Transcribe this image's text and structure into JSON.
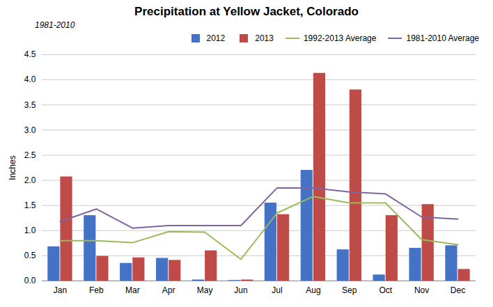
{
  "chart_data": {
    "type": "bar",
    "title": "Precipitation at Yellow Jacket, Colorado",
    "subtitle": "1981-2010",
    "ylabel": "Inches",
    "categories": [
      "Jan",
      "Feb",
      "Mar",
      "Apr",
      "May",
      "Jun",
      "Jul",
      "Aug",
      "Sep",
      "Oct",
      "Nov",
      "Dec"
    ],
    "series": [
      {
        "name": "2012",
        "type": "bar",
        "color": "#4472C4",
        "values": [
          0.68,
          1.3,
          0.35,
          0.45,
          0.02,
          0.01,
          1.55,
          2.2,
          0.62,
          0.12,
          0.65,
          0.7
        ]
      },
      {
        "name": "2013",
        "type": "bar",
        "color": "#BE4B48",
        "values": [
          2.07,
          0.49,
          0.46,
          0.41,
          0.6,
          0.02,
          1.32,
          4.13,
          3.8,
          1.3,
          1.52,
          0.23
        ]
      },
      {
        "name": "1992-2013 Average",
        "type": "line",
        "color": "#9BBB59",
        "values": [
          0.8,
          0.8,
          0.76,
          0.98,
          0.97,
          0.43,
          1.35,
          1.68,
          1.55,
          1.55,
          0.82,
          0.72
        ]
      },
      {
        "name": "1981-2010 Average",
        "type": "line",
        "color": "#8064A2",
        "values": [
          1.18,
          1.43,
          1.05,
          1.1,
          1.1,
          1.1,
          1.85,
          1.85,
          1.77,
          1.73,
          1.27,
          1.23
        ]
      }
    ],
    "ylim": [
      0,
      4.5
    ],
    "yticks": [
      {
        "value": 0,
        "label": "0.0"
      },
      0.5,
      {
        "value": 1,
        "label": "1.0"
      },
      1.5,
      {
        "value": 2,
        "label": "2.0"
      },
      2.5,
      {
        "value": 3,
        "label": "3.0"
      },
      3.5,
      {
        "value": 4,
        "label": "4.0"
      },
      4.5
    ],
    "grid": true,
    "legend": "upper right"
  }
}
